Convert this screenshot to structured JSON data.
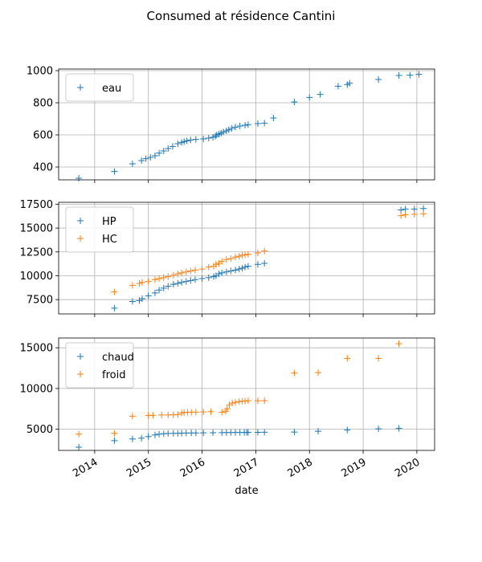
{
  "figure": {
    "title": "Consumed at résidence Cantini",
    "xlabel": "date",
    "grid": true
  },
  "colors": {
    "blue": "#1f77b4",
    "orange": "#ff7f0e"
  },
  "chart_data": [
    {
      "type": "scatter",
      "title": "Consumed at résidence Cantini",
      "xlabel": "date",
      "ylabel": "",
      "xlim": [
        "2013-05-01",
        "2020-05-01"
      ],
      "ylim": [
        320,
        1010
      ],
      "yticks": [
        400,
        600,
        800,
        1000
      ],
      "xticks": [
        "2014",
        "2015",
        "2016",
        "2017",
        "2018",
        "2019",
        "2020"
      ],
      "legend": "upper left",
      "series": [
        {
          "name": "eau",
          "color": "#1f77b4",
          "marker": "+",
          "points": [
            [
              "2013-09-15",
              330
            ],
            [
              "2014-05-15",
              372
            ],
            [
              "2014-09-15",
              420
            ],
            [
              "2014-11-15",
              440
            ],
            [
              "2014-12-15",
              452
            ],
            [
              "2015-01-15",
              460
            ],
            [
              "2015-02-15",
              470
            ],
            [
              "2015-03-15",
              486
            ],
            [
              "2015-04-15",
              500
            ],
            [
              "2015-05-15",
              515
            ],
            [
              "2015-06-15",
              528
            ],
            [
              "2015-07-20",
              545
            ],
            [
              "2015-08-15",
              553
            ],
            [
              "2015-09-01",
              558
            ],
            [
              "2015-09-20",
              563
            ],
            [
              "2015-10-15",
              568
            ],
            [
              "2015-11-20",
              572
            ],
            [
              "2016-01-10",
              575
            ],
            [
              "2016-02-15",
              580
            ],
            [
              "2016-03-15",
              585
            ],
            [
              "2016-04-01",
              592
            ],
            [
              "2016-04-10",
              600
            ],
            [
              "2016-04-25",
              605
            ],
            [
              "2016-05-10",
              610
            ],
            [
              "2016-05-25",
              618
            ],
            [
              "2016-06-15",
              625
            ],
            [
              "2016-07-01",
              632
            ],
            [
              "2016-07-20",
              640
            ],
            [
              "2016-08-15",
              648
            ],
            [
              "2016-09-15",
              655
            ],
            [
              "2016-10-20",
              660
            ],
            [
              "2016-11-10",
              664
            ],
            [
              "2017-01-15",
              670
            ],
            [
              "2017-03-01",
              673
            ],
            [
              "2017-05-01",
              705
            ],
            [
              "2017-09-20",
              805
            ],
            [
              "2018-01-01",
              833
            ],
            [
              "2018-03-15",
              852
            ],
            [
              "2018-07-15",
              903
            ],
            [
              "2018-09-15",
              913
            ],
            [
              "2018-10-01",
              922
            ],
            [
              "2019-04-15",
              945
            ],
            [
              "2019-09-01",
              970
            ],
            [
              "2019-11-15",
              972
            ],
            [
              "2020-01-15",
              977
            ]
          ]
        }
      ]
    },
    {
      "type": "scatter",
      "ylabel": "",
      "xlim": [
        "2013-05-01",
        "2020-05-01"
      ],
      "ylim": [
        6000,
        17700
      ],
      "yticks": [
        7500,
        10000,
        12500,
        15000,
        17500
      ],
      "legend": "upper left",
      "series": [
        {
          "name": "HP",
          "color": "#1f77b4",
          "marker": "+",
          "points": [
            [
              "2014-05-15",
              6600
            ],
            [
              "2014-09-15",
              7300
            ],
            [
              "2014-11-01",
              7400
            ],
            [
              "2014-11-20",
              7600
            ],
            [
              "2015-01-01",
              7900
            ],
            [
              "2015-02-15",
              8200
            ],
            [
              "2015-03-15",
              8500
            ],
            [
              "2015-04-15",
              8700
            ],
            [
              "2015-05-15",
              8900
            ],
            [
              "2015-06-20",
              9100
            ],
            [
              "2015-07-20",
              9200
            ],
            [
              "2015-08-15",
              9300
            ],
            [
              "2015-09-15",
              9400
            ],
            [
              "2015-10-15",
              9500
            ],
            [
              "2015-11-15",
              9600
            ],
            [
              "2016-01-01",
              9700
            ],
            [
              "2016-02-15",
              9800
            ],
            [
              "2016-03-20",
              9900
            ],
            [
              "2016-04-05",
              10000
            ],
            [
              "2016-04-25",
              10200
            ],
            [
              "2016-05-15",
              10300
            ],
            [
              "2016-06-15",
              10400
            ],
            [
              "2016-07-15",
              10500
            ],
            [
              "2016-08-15",
              10600
            ],
            [
              "2016-09-10",
              10700
            ],
            [
              "2016-10-01",
              10800
            ],
            [
              "2016-10-20",
              10900
            ],
            [
              "2016-11-10",
              11000
            ],
            [
              "2017-01-15",
              11200
            ],
            [
              "2017-03-01",
              11300
            ],
            [
              "2019-09-15",
              16900
            ],
            [
              "2019-10-15",
              17000
            ],
            [
              "2019-12-15",
              17000
            ],
            [
              "2020-02-15",
              17050
            ]
          ]
        },
        {
          "name": "HC",
          "color": "#ff7f0e",
          "marker": "+",
          "points": [
            [
              "2014-05-15",
              8300
            ],
            [
              "2014-09-15",
              9000
            ],
            [
              "2014-11-01",
              9200
            ],
            [
              "2014-11-20",
              9300
            ],
            [
              "2015-01-01",
              9400
            ],
            [
              "2015-02-15",
              9600
            ],
            [
              "2015-03-15",
              9700
            ],
            [
              "2015-04-15",
              9800
            ],
            [
              "2015-05-15",
              9900
            ],
            [
              "2015-06-20",
              10050
            ],
            [
              "2015-07-20",
              10200
            ],
            [
              "2015-08-15",
              10300
            ],
            [
              "2015-09-15",
              10400
            ],
            [
              "2015-10-15",
              10500
            ],
            [
              "2015-11-15",
              10600
            ],
            [
              "2016-01-01",
              10700
            ],
            [
              "2016-02-15",
              10900
            ],
            [
              "2016-03-20",
              11000
            ],
            [
              "2016-04-05",
              11200
            ],
            [
              "2016-04-25",
              11300
            ],
            [
              "2016-05-15",
              11500
            ],
            [
              "2016-06-15",
              11700
            ],
            [
              "2016-07-15",
              11800
            ],
            [
              "2016-08-15",
              11950
            ],
            [
              "2016-09-10",
              12050
            ],
            [
              "2016-10-01",
              12150
            ],
            [
              "2016-10-20",
              12200
            ],
            [
              "2016-11-10",
              12250
            ],
            [
              "2017-01-15",
              12400
            ],
            [
              "2017-03-01",
              12600
            ],
            [
              "2019-09-15",
              16300
            ],
            [
              "2019-10-15",
              16400
            ],
            [
              "2019-12-15",
              16450
            ],
            [
              "2020-02-15",
              16500
            ]
          ]
        }
      ]
    },
    {
      "type": "scatter",
      "ylabel": "",
      "xlim": [
        "2013-05-01",
        "2020-05-01"
      ],
      "ylim": [
        2400,
        16200
      ],
      "yticks": [
        5000,
        10000,
        15000
      ],
      "legend": "upper left",
      "series": [
        {
          "name": "chaud",
          "color": "#1f77b4",
          "marker": "+",
          "points": [
            [
              "2013-09-15",
              2800
            ],
            [
              "2014-05-15",
              3600
            ],
            [
              "2014-09-15",
              3800
            ],
            [
              "2014-11-15",
              3900
            ],
            [
              "2015-01-01",
              4100
            ],
            [
              "2015-02-15",
              4300
            ],
            [
              "2015-03-15",
              4400
            ],
            [
              "2015-04-15",
              4450
            ],
            [
              "2015-05-15",
              4480
            ],
            [
              "2015-06-20",
              4500
            ],
            [
              "2015-07-20",
              4500
            ],
            [
              "2015-08-15",
              4520
            ],
            [
              "2015-09-15",
              4530
            ],
            [
              "2015-10-20",
              4540
            ],
            [
              "2015-11-20",
              4550
            ],
            [
              "2016-01-10",
              4560
            ],
            [
              "2016-03-15",
              4570
            ],
            [
              "2016-05-15",
              4580
            ],
            [
              "2016-06-15",
              4590
            ],
            [
              "2016-07-15",
              4595
            ],
            [
              "2016-08-15",
              4600
            ],
            [
              "2016-09-15",
              4600
            ],
            [
              "2016-10-15",
              4605
            ],
            [
              "2016-11-01",
              4610
            ],
            [
              "2016-11-10",
              4615
            ],
            [
              "2017-01-15",
              4620
            ],
            [
              "2017-03-01",
              4625
            ],
            [
              "2017-09-20",
              4650
            ],
            [
              "2018-03-01",
              4750
            ],
            [
              "2018-09-15",
              4900
            ],
            [
              "2019-04-15",
              5050
            ],
            [
              "2019-09-01",
              5100
            ]
          ]
        },
        {
          "name": "froid",
          "color": "#ff7f0e",
          "marker": "+",
          "points": [
            [
              "2013-09-15",
              4400
            ],
            [
              "2014-05-15",
              4500
            ],
            [
              "2014-09-15",
              6600
            ],
            [
              "2015-01-01",
              6700
            ],
            [
              "2015-02-01",
              6700
            ],
            [
              "2015-04-01",
              6750
            ],
            [
              "2015-05-15",
              6750
            ],
            [
              "2015-06-20",
              6780
            ],
            [
              "2015-07-20",
              6800
            ],
            [
              "2015-08-15",
              7000
            ],
            [
              "2015-09-01",
              7050
            ],
            [
              "2015-09-25",
              7080
            ],
            [
              "2015-10-20",
              7100
            ],
            [
              "2015-11-20",
              7100
            ],
            [
              "2016-01-10",
              7120
            ],
            [
              "2016-03-01",
              7150
            ],
            [
              "2016-05-15",
              7100
            ],
            [
              "2016-06-10",
              7200
            ],
            [
              "2016-06-20",
              7500
            ],
            [
              "2016-07-05",
              8000
            ],
            [
              "2016-07-25",
              8200
            ],
            [
              "2016-08-15",
              8300
            ],
            [
              "2016-09-10",
              8400
            ],
            [
              "2016-10-01",
              8450
            ],
            [
              "2016-10-20",
              8450
            ],
            [
              "2016-11-10",
              8500
            ],
            [
              "2017-01-15",
              8500
            ],
            [
              "2017-03-01",
              8500
            ],
            [
              "2017-09-20",
              11900
            ],
            [
              "2018-03-01",
              11950
            ],
            [
              "2018-09-15",
              13700
            ],
            [
              "2019-04-15",
              13700
            ],
            [
              "2019-09-01",
              15500
            ]
          ]
        }
      ]
    }
  ]
}
